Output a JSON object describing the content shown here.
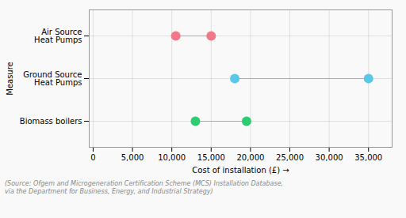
{
  "chart_data": {
    "type": "dumbbell",
    "categories": [
      "Air Source\nHeat Pumps",
      "Ground Source\nHeat Pumps",
      "Biomass boilers"
    ],
    "ranges": [
      [
        10500,
        15000
      ],
      [
        18000,
        35000
      ],
      [
        13000,
        19500
      ]
    ],
    "colors": [
      "#F07888",
      "#5BC8E8",
      "#2ECC71"
    ],
    "xlabel": "Cost of installation (£)",
    "ylabel": "Measure",
    "xlim": [
      -500,
      38000
    ],
    "xticks": [
      0,
      {
        "value": 5000,
        "label": "5,000"
      },
      {
        "value": 10000,
        "label": "10,000"
      },
      {
        "value": 15000,
        "label": "15,000"
      },
      {
        "value": 20000,
        "label": "20,000"
      },
      {
        "value": 25000,
        "label": "25,000"
      },
      {
        "value": 30000,
        "label": "30,000"
      },
      {
        "value": 35000,
        "label": "35,000"
      }
    ],
    "grid": true,
    "caption": "(Source: Ofgem and Microgeneration Certification Scheme (MCS) Installation Database,\nvia the Department for Business, Energy, and Industrial Strategy)"
  }
}
